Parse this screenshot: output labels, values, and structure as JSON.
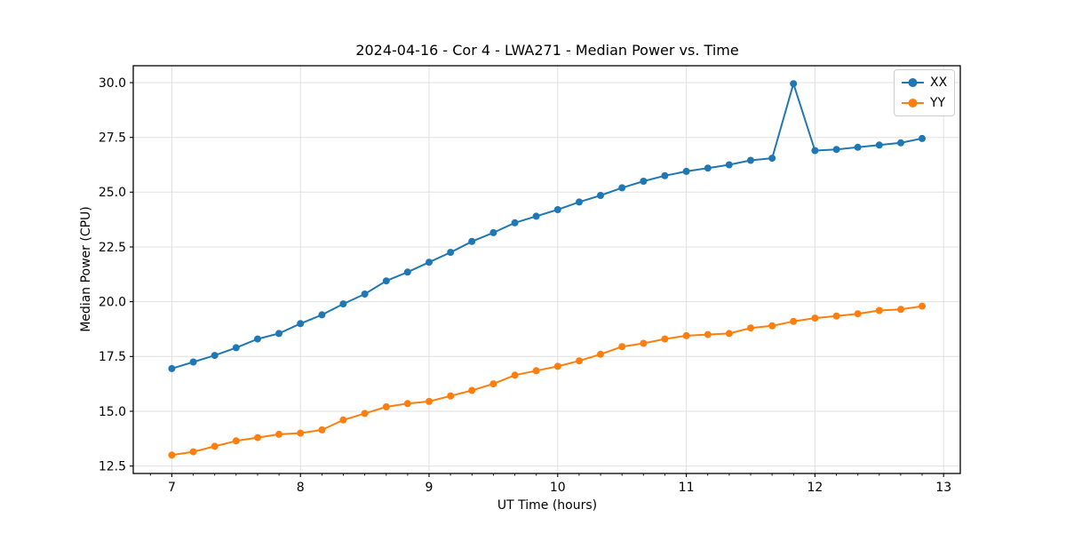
{
  "chart_data": {
    "type": "line",
    "title": "2024-04-16 - Cor 4 - LWA271 - Median Power vs. Time",
    "xlabel": "UT Time (hours)",
    "ylabel": "Median Power (CPU)",
    "x_ticks": [
      7,
      8,
      9,
      10,
      11,
      12,
      13
    ],
    "y_ticks": [
      12.5,
      15.0,
      17.5,
      20.0,
      22.5,
      25.0,
      27.5,
      30.0
    ],
    "xlim": [
      6.7,
      13.13
    ],
    "ylim": [
      12.16,
      30.77
    ],
    "x_minor_ticks_per_interval": 6,
    "grid": true,
    "grid_color": "#e0e0e0",
    "legend_position": "upper right",
    "x": [
      7.0,
      7.167,
      7.333,
      7.5,
      7.667,
      7.833,
      8.0,
      8.167,
      8.333,
      8.5,
      8.667,
      8.833,
      9.0,
      9.167,
      9.333,
      9.5,
      9.667,
      9.833,
      10.0,
      10.167,
      10.333,
      10.5,
      10.667,
      10.833,
      11.0,
      11.167,
      11.333,
      11.5,
      11.667,
      11.833,
      12.0,
      12.167,
      12.333,
      12.5,
      12.667,
      12.833
    ],
    "series": [
      {
        "name": "XX",
        "color": "#1f77b4",
        "marker": "circle",
        "values": [
          16.95,
          17.25,
          17.55,
          17.9,
          18.3,
          18.55,
          19.0,
          19.4,
          19.9,
          20.35,
          20.95,
          21.35,
          21.8,
          22.25,
          22.75,
          23.15,
          23.6,
          23.9,
          24.2,
          24.55,
          24.85,
          25.2,
          25.5,
          25.75,
          25.95,
          26.1,
          26.25,
          26.45,
          26.55,
          29.95,
          26.9,
          26.95,
          27.05,
          27.15,
          27.25,
          27.45
        ]
      },
      {
        "name": "YY",
        "color": "#ff7f0e",
        "marker": "circle",
        "values": [
          13.0,
          13.15,
          13.4,
          13.65,
          13.8,
          13.95,
          14.0,
          14.15,
          14.6,
          14.9,
          15.2,
          15.35,
          15.45,
          15.7,
          15.95,
          16.25,
          16.65,
          16.85,
          17.05,
          17.3,
          17.6,
          17.95,
          18.1,
          18.3,
          18.45,
          18.5,
          18.55,
          18.8,
          18.9,
          19.1,
          19.25,
          19.35,
          19.45,
          19.6,
          19.65,
          19.8
        ]
      }
    ]
  }
}
